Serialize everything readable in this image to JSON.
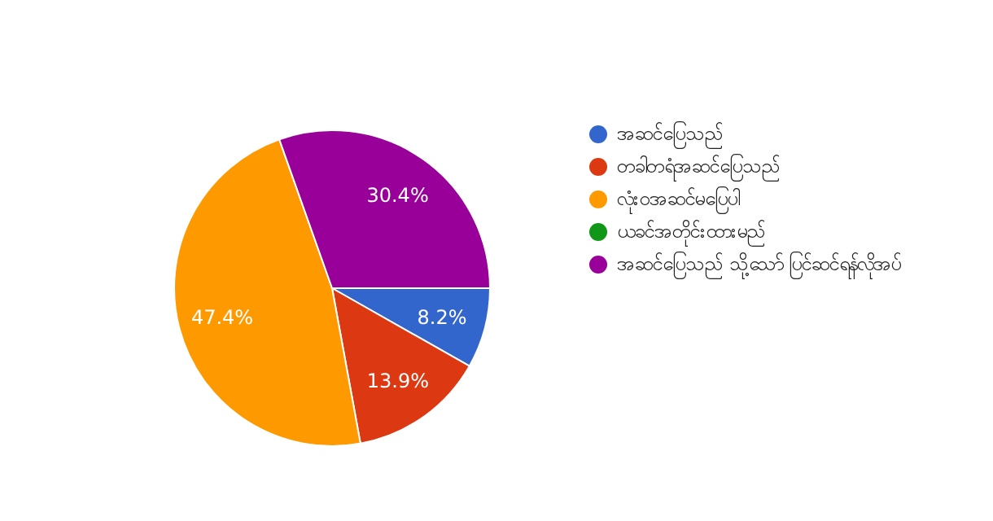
{
  "chart_data": {
    "type": "pie",
    "categories": [
      "အဆင်ပြေသည်",
      "တခါတရံအဆင်ပြေသည်",
      "လုံးဝအဆင်မပြေပါ",
      "ယခင်အတိုင်းထားမည်",
      "အဆင်ပြေသည် သို့သော် ပြင်ဆင်ရန်လိုအပ်"
    ],
    "values": [
      8.2,
      13.9,
      47.4,
      0,
      30.4
    ],
    "colors": [
      "#3366cc",
      "#dc3912",
      "#ff9900",
      "#109618",
      "#990099"
    ],
    "value_labels": [
      "8.2%",
      "13.9%",
      "47.4%",
      null,
      "30.4%"
    ],
    "legend": "right"
  }
}
